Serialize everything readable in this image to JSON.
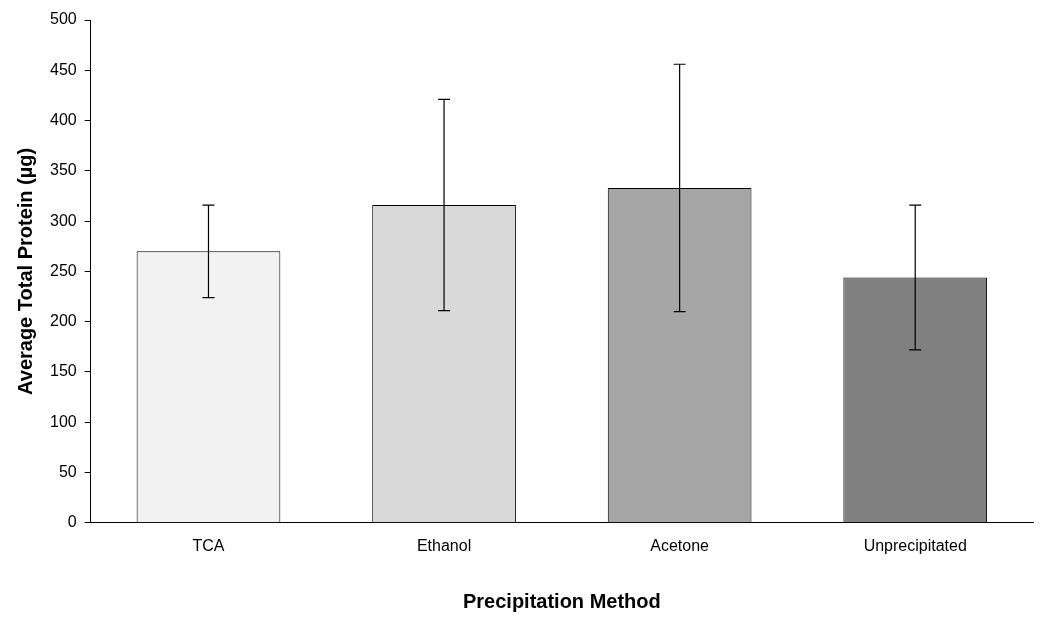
{
  "chart_data": {
    "type": "bar",
    "xlabel": "Precipitation Method",
    "ylabel": "Average Total Protein (µg)",
    "categories": [
      "TCA",
      "Ethanol",
      "Acetone",
      "Unprecipitated"
    ],
    "values": [
      270,
      316,
      333,
      244
    ],
    "colors": [
      "#f2f2f2",
      "#d9d9d9",
      "#a6a6a6",
      "#808080"
    ],
    "errors": [
      46,
      105,
      123,
      72
    ],
    "ylim": [
      0,
      500
    ],
    "yticks": [
      0,
      50,
      100,
      150,
      200,
      250,
      300,
      350,
      400,
      450,
      500
    ],
    "grid": false,
    "legend": false
  }
}
